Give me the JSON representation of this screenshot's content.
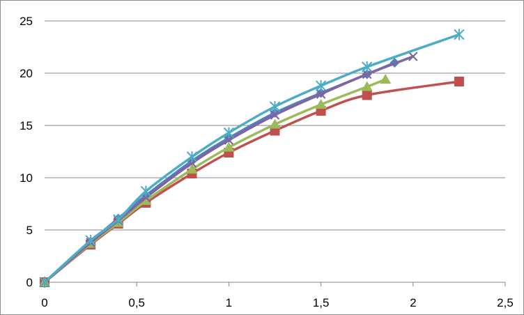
{
  "chart_data": {
    "type": "line",
    "title": "",
    "xlabel": "",
    "ylabel": "",
    "xlim": [
      0,
      2.5
    ],
    "ylim": [
      0,
      25
    ],
    "x_ticks": [
      0,
      0.5,
      1,
      1.5,
      2,
      2.5
    ],
    "x_tick_labels": [
      "0",
      "0,5",
      "1",
      "1,5",
      "2",
      "2,5"
    ],
    "y_ticks": [
      0,
      5,
      10,
      15,
      20,
      25
    ],
    "y_tick_labels": [
      "0",
      "5",
      "10",
      "15",
      "20",
      "25"
    ],
    "grid": "horizontal major gridlines",
    "legend": "none",
    "series": [
      {
        "color": "#4F81BD",
        "marker": "diamond",
        "x": [
          0,
          0.25,
          0.4,
          0.55,
          0.8,
          1.0,
          1.25,
          1.5,
          1.75,
          1.9
        ],
        "y": [
          0,
          3.9,
          6.1,
          8.3,
          11.6,
          13.8,
          16.2,
          18.1,
          19.9,
          21.0
        ]
      },
      {
        "color": "#C0504D",
        "marker": "square",
        "x": [
          0,
          0.25,
          0.4,
          0.55,
          0.8,
          1.0,
          1.25,
          1.5,
          1.75,
          2.25
        ],
        "y": [
          0,
          3.6,
          5.6,
          7.6,
          10.4,
          12.4,
          14.5,
          16.4,
          17.9,
          19.2
        ]
      },
      {
        "color": "#9BBB59",
        "marker": "triangle",
        "x": [
          0,
          0.25,
          0.4,
          0.55,
          0.8,
          1.0,
          1.25,
          1.5,
          1.75,
          1.85
        ],
        "y": [
          0,
          3.7,
          5.7,
          7.8,
          10.8,
          12.9,
          15.1,
          17.0,
          18.7,
          19.4
        ]
      },
      {
        "color": "#8064A2",
        "marker": "x",
        "x": [
          0,
          0.25,
          0.4,
          0.55,
          0.8,
          1.0,
          1.25,
          1.5,
          1.75,
          2.0
        ],
        "y": [
          0,
          3.8,
          5.9,
          8.1,
          11.4,
          13.6,
          16.0,
          18.0,
          19.9,
          21.6
        ]
      },
      {
        "color": "#4BACC6",
        "marker": "star",
        "x": [
          0,
          0.25,
          0.4,
          0.55,
          0.8,
          1.0,
          1.25,
          1.5,
          1.75,
          2.25
        ],
        "y": [
          0,
          4.0,
          6.0,
          8.7,
          12.0,
          14.3,
          16.8,
          18.8,
          20.6,
          23.7
        ]
      }
    ]
  }
}
